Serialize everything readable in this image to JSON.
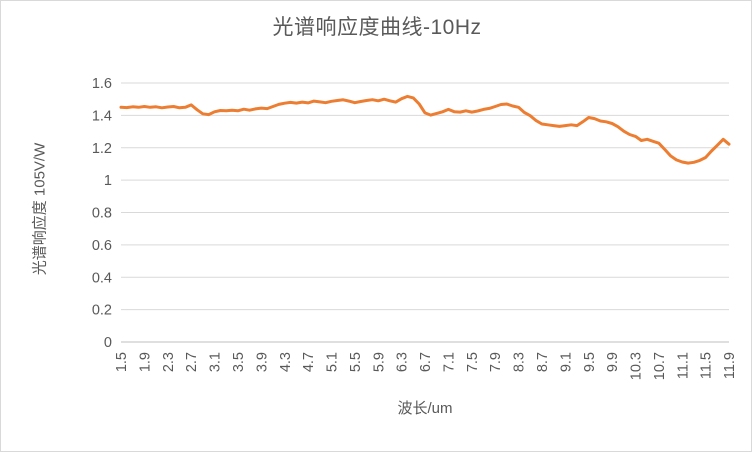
{
  "chart_data": {
    "type": "line",
    "title": "光谱响应度曲线-10Hz",
    "xlabel": "波长/um",
    "ylabel": "光谱响应度 105V/W",
    "legend": "none",
    "grid": "horizontal",
    "xlim": [
      1.5,
      11.9
    ],
    "ylim": [
      0,
      1.6
    ],
    "x_tick_labels": [
      "1.5",
      "1.9",
      "2.3",
      "2.7",
      "3.1",
      "3.5",
      "3.9",
      "4.3",
      "4.7",
      "5.1",
      "5.5",
      "5.9",
      "6.3",
      "6.7",
      "7.1",
      "7.5",
      "7.9",
      "8.3",
      "8.7",
      "9.1",
      "9.5",
      "9.9",
      "10.3",
      "10.7",
      "11.1",
      "11.5",
      "11.9"
    ],
    "y_ticks": [
      0,
      0.2,
      0.4,
      0.6,
      0.8,
      1,
      1.2,
      1.4,
      1.6
    ],
    "y_tick_labels": [
      "0",
      "0.2",
      "0.4",
      "0.6",
      "0.8",
      "1",
      "1.2",
      "1.4",
      "1.6"
    ],
    "line_color": "#ED7D31",
    "text_color": "#595959",
    "grid_color": "#D9D9D9",
    "axis_line_color": "#BFBFBF",
    "x": [
      1.5,
      1.6,
      1.7,
      1.8,
      1.9,
      2.0,
      2.1,
      2.2,
      2.3,
      2.4,
      2.5,
      2.6,
      2.7,
      2.8,
      2.9,
      3.0,
      3.1,
      3.2,
      3.3,
      3.4,
      3.5,
      3.6,
      3.7,
      3.8,
      3.9,
      4.0,
      4.1,
      4.2,
      4.3,
      4.4,
      4.5,
      4.6,
      4.7,
      4.8,
      4.9,
      5.0,
      5.1,
      5.2,
      5.3,
      5.4,
      5.5,
      5.6,
      5.7,
      5.8,
      5.9,
      6.0,
      6.1,
      6.2,
      6.3,
      6.4,
      6.5,
      6.6,
      6.7,
      6.8,
      6.9,
      7.0,
      7.1,
      7.2,
      7.3,
      7.4,
      7.5,
      7.6,
      7.7,
      7.8,
      7.9,
      8.0,
      8.1,
      8.2,
      8.3,
      8.4,
      8.5,
      8.6,
      8.7,
      8.8,
      8.9,
      9.0,
      9.1,
      9.2,
      9.3,
      9.4,
      9.5,
      9.6,
      9.7,
      9.8,
      9.9,
      10.0,
      10.1,
      10.2,
      10.3,
      10.4,
      10.5,
      10.6,
      10.7,
      10.8,
      10.9,
      11.0,
      11.1,
      11.2,
      11.3,
      11.4,
      11.5,
      11.6,
      11.7,
      11.8,
      11.9
    ],
    "values": [
      1.45,
      1.448,
      1.453,
      1.45,
      1.455,
      1.45,
      1.453,
      1.447,
      1.452,
      1.455,
      1.447,
      1.45,
      1.465,
      1.435,
      1.41,
      1.405,
      1.422,
      1.43,
      1.428,
      1.432,
      1.428,
      1.438,
      1.432,
      1.44,
      1.445,
      1.442,
      1.455,
      1.468,
      1.475,
      1.48,
      1.476,
      1.482,
      1.477,
      1.488,
      1.483,
      1.478,
      1.487,
      1.492,
      1.496,
      1.488,
      1.478,
      1.486,
      1.492,
      1.497,
      1.49,
      1.5,
      1.49,
      1.482,
      1.503,
      1.517,
      1.508,
      1.47,
      1.415,
      1.402,
      1.412,
      1.422,
      1.437,
      1.423,
      1.42,
      1.428,
      1.42,
      1.427,
      1.437,
      1.443,
      1.455,
      1.467,
      1.47,
      1.458,
      1.45,
      1.418,
      1.398,
      1.368,
      1.347,
      1.342,
      1.337,
      1.332,
      1.337,
      1.342,
      1.337,
      1.36,
      1.387,
      1.38,
      1.365,
      1.36,
      1.35,
      1.33,
      1.302,
      1.282,
      1.27,
      1.245,
      1.252,
      1.24,
      1.228,
      1.19,
      1.15,
      1.125,
      1.112,
      1.105,
      1.11,
      1.122,
      1.14,
      1.18,
      1.215,
      1.252,
      1.222
    ]
  }
}
